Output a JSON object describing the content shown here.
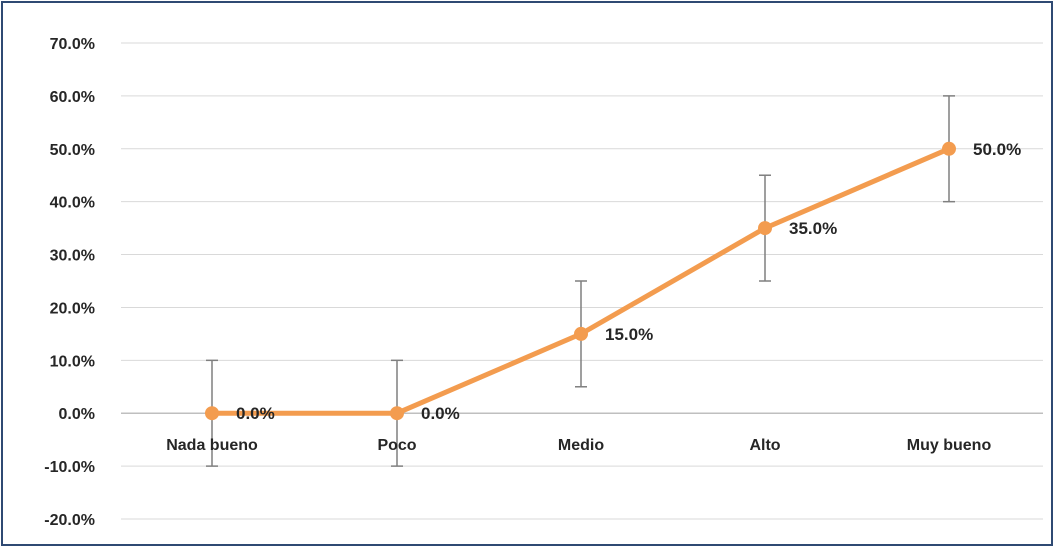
{
  "chart_data": {
    "type": "line",
    "categories": [
      "Nada bueno",
      "Poco",
      "Medio",
      "Alto",
      "Muy bueno"
    ],
    "series": [
      {
        "values": [
          0.0,
          0.0,
          15.0,
          35.0,
          50.0
        ],
        "error_bars": [
          10,
          10,
          10,
          10,
          10
        ],
        "color": "#f39c4f"
      }
    ],
    "data_labels": [
      "0.0%",
      "0.0%",
      "15.0%",
      "35.0%",
      "50.0%"
    ],
    "y_ticks": [
      70,
      60,
      50,
      40,
      30,
      20,
      10,
      0,
      -10,
      -20
    ],
    "y_tick_labels": [
      "70.0%",
      "60.0%",
      "50.0%",
      "40.0%",
      "30.0%",
      "20.0%",
      "10.0%",
      "0.0%",
      "-10.0%",
      "-20.0%"
    ],
    "ylim": [
      -20,
      70
    ],
    "grid": true,
    "title": "",
    "xlabel": "",
    "ylabel": ""
  }
}
